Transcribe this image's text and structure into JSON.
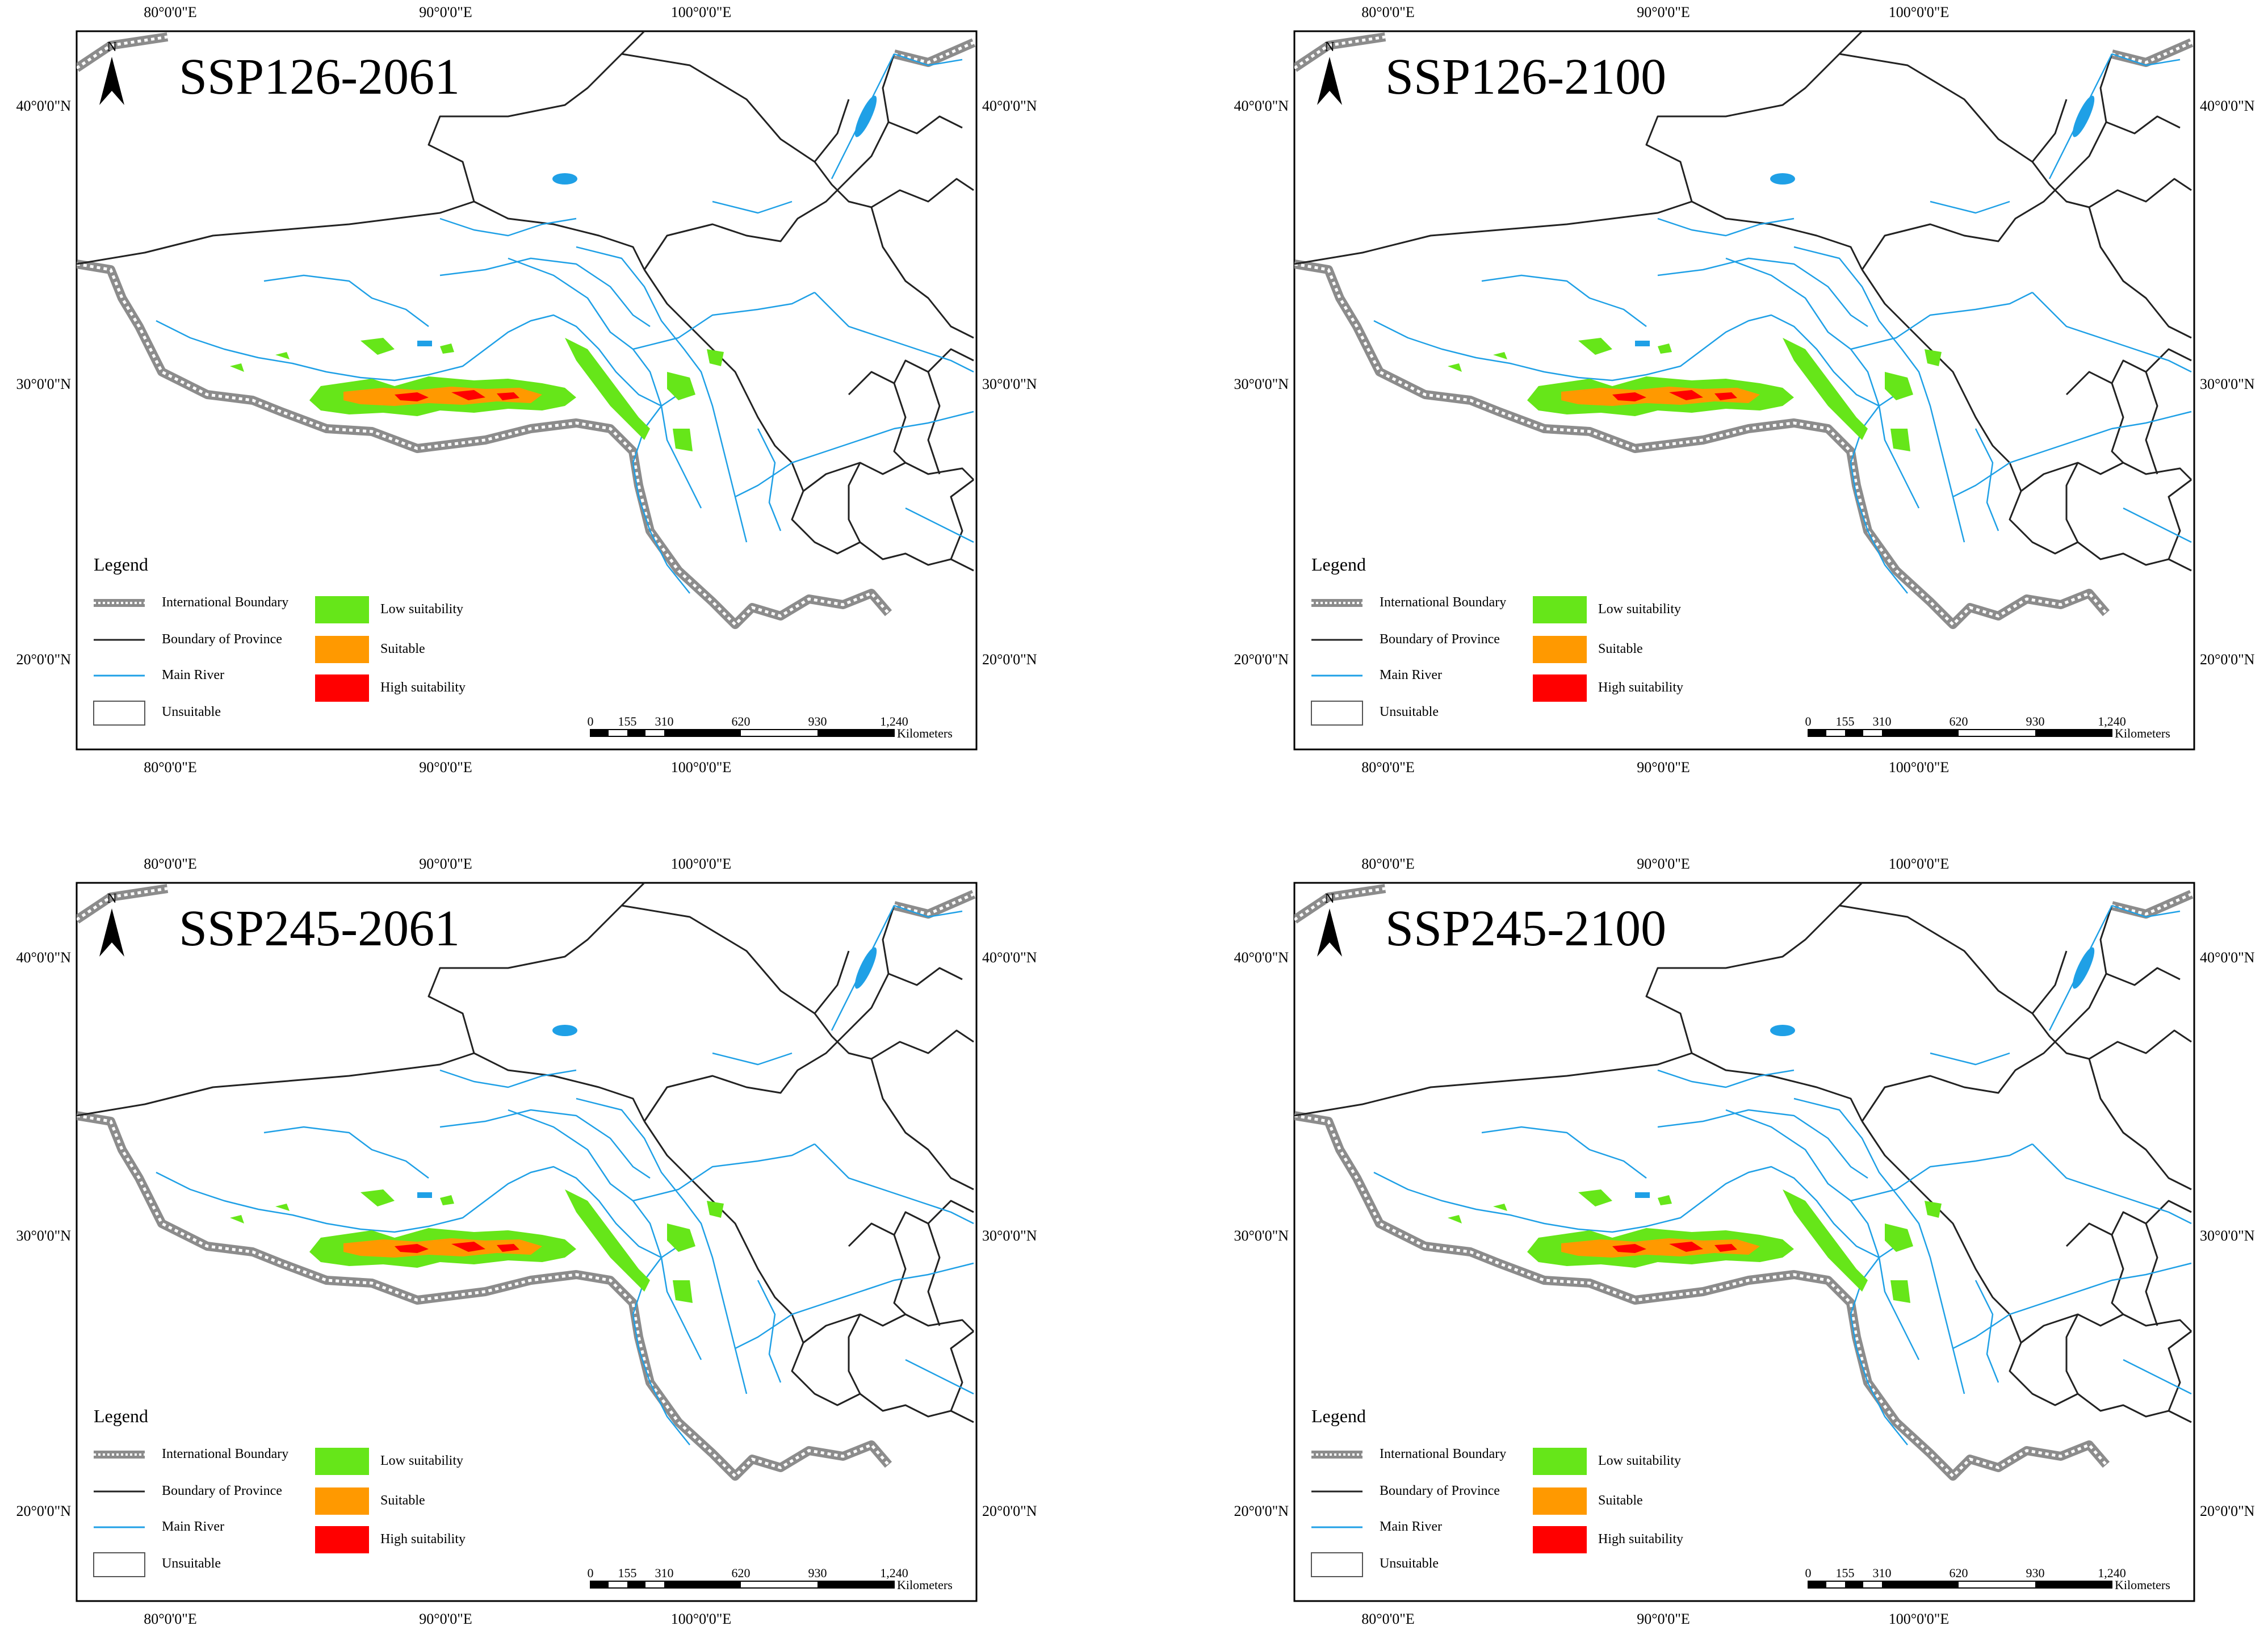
{
  "panels": [
    {
      "title": "SSP126-2061",
      "variant": "p1"
    },
    {
      "title": "SSP126-2100",
      "variant": "p2"
    },
    {
      "title": "SSP245-2061",
      "variant": "p3"
    },
    {
      "title": "SSP245-2100",
      "variant": "p4"
    }
  ],
  "axes": {
    "top": [
      "80°0'0\"E",
      "90°0'0\"E",
      "100°0'0\"E"
    ],
    "bottom": [
      "80°0'0\"E",
      "90°0'0\"E",
      "100°0'0\"E"
    ],
    "left": [
      "40°0'0\"N",
      "30°0'0\"N",
      "20°0'0\"N"
    ],
    "right": [
      "40°0'0\"N",
      "30°0'0\"N",
      "20°0'0\"N"
    ]
  },
  "north_label": "N",
  "legend": {
    "title": "Legend",
    "lines": [
      {
        "label": "International Boundary",
        "kind": "intl"
      },
      {
        "label": "Boundary of Province",
        "kind": "prov"
      },
      {
        "label": "Main River",
        "kind": "river"
      },
      {
        "label": "Unsuitable",
        "kind": "box"
      }
    ],
    "classes": [
      {
        "label": "Low suitability",
        "color": "#66e619"
      },
      {
        "label": "Suitable",
        "color": "#ff9900"
      },
      {
        "label": "High suitability",
        "color": "#ff0000"
      }
    ]
  },
  "scale": {
    "ticks": [
      "0",
      "155",
      "310",
      "620",
      "930",
      "1,240"
    ],
    "unit": "Kilometers"
  },
  "colors": {
    "low": "#66e619",
    "suitable": "#ff9900",
    "high": "#ff0000",
    "river": "#1fa0e6",
    "boundary": "#222222",
    "international": "#8c8c8c"
  }
}
